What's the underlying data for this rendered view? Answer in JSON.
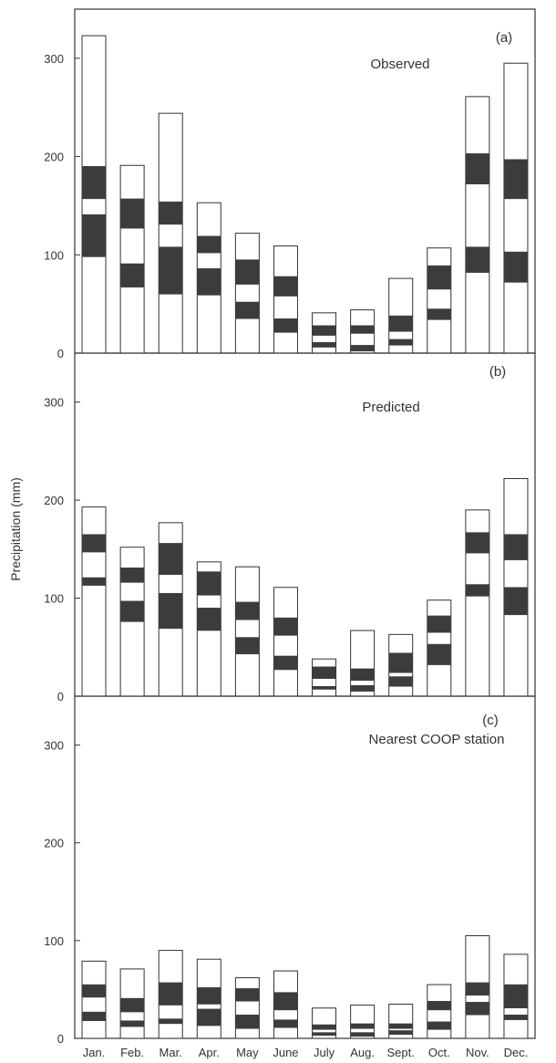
{
  "figure": {
    "ylabel": "Precipitation (mm)",
    "months": [
      "Jan.",
      "Feb.",
      "Mar.",
      "Apr.",
      "May",
      "June",
      "July",
      "Aug.",
      "Sept.",
      "Oct.",
      "Nov.",
      "Dec."
    ],
    "colors": {
      "band": "#3c3c3c",
      "box": "#ffffff",
      "stroke": "#333333"
    }
  },
  "chart_data": [
    {
      "type": "bar",
      "panel_label": "(a)",
      "title": "Observed",
      "ylim": [
        0,
        350
      ],
      "yticks": [
        0,
        100,
        200,
        300
      ],
      "grid": false,
      "categories": [
        "Jan.",
        "Feb.",
        "Mar.",
        "Apr.",
        "May",
        "June",
        "July",
        "Aug.",
        "Sept.",
        "Oct.",
        "Nov.",
        "Dec."
      ],
      "total": [
        323,
        191,
        244,
        153,
        122,
        109,
        41,
        44,
        76,
        107,
        261,
        295
      ],
      "upper_band": [
        [
          157,
          190
        ],
        [
          127,
          157
        ],
        [
          131,
          154
        ],
        [
          102,
          119
        ],
        [
          70,
          95
        ],
        [
          58,
          78
        ],
        [
          18,
          28
        ],
        [
          20,
          28
        ],
        [
          22,
          38
        ],
        [
          65,
          89
        ],
        [
          172,
          203
        ],
        [
          157,
          197
        ]
      ],
      "lower_band": [
        [
          98,
          141
        ],
        [
          67,
          91
        ],
        [
          60,
          108
        ],
        [
          59,
          86
        ],
        [
          35,
          52
        ],
        [
          21,
          35
        ],
        [
          6,
          11
        ],
        [
          2,
          8
        ],
        [
          8,
          14
        ],
        [
          34,
          45
        ],
        [
          82,
          108
        ],
        [
          72,
          103
        ]
      ]
    },
    {
      "type": "bar",
      "panel_label": "(b)",
      "title": "Predicted",
      "ylim": [
        0,
        350
      ],
      "yticks": [
        0,
        100,
        200,
        300
      ],
      "grid": false,
      "categories": [
        "Jan.",
        "Feb.",
        "Mar.",
        "Apr.",
        "May",
        "June",
        "July",
        "Aug.",
        "Sept.",
        "Oct.",
        "Nov.",
        "Dec."
      ],
      "total": [
        193,
        152,
        177,
        137,
        132,
        111,
        38,
        67,
        63,
        98,
        190,
        222
      ],
      "upper_band": [
        [
          147,
          165
        ],
        [
          116,
          131
        ],
        [
          124,
          156
        ],
        [
          103,
          127
        ],
        [
          78,
          96
        ],
        [
          62,
          80
        ],
        [
          18,
          30
        ],
        [
          16,
          28
        ],
        [
          24,
          44
        ],
        [
          65,
          82
        ],
        [
          146,
          167
        ],
        [
          139,
          165
        ]
      ],
      "lower_band": [
        [
          113,
          121
        ],
        [
          76,
          97
        ],
        [
          69,
          105
        ],
        [
          67,
          90
        ],
        [
          43,
          60
        ],
        [
          27,
          41
        ],
        [
          7,
          10
        ],
        [
          5,
          11
        ],
        [
          10,
          20
        ],
        [
          32,
          53
        ],
        [
          102,
          114
        ],
        [
          83,
          111
        ]
      ]
    },
    {
      "type": "bar",
      "panel_label": "(c)",
      "title": "Nearest COOP station",
      "ylim": [
        0,
        350
      ],
      "yticks": [
        0,
        100,
        200,
        300
      ],
      "grid": false,
      "categories": [
        "Jan.",
        "Feb.",
        "Mar.",
        "Apr.",
        "May",
        "June",
        "July",
        "Aug.",
        "Sept.",
        "Oct.",
        "Nov.",
        "Dec."
      ],
      "total": [
        79,
        71,
        90,
        81,
        62,
        69,
        31,
        34,
        35,
        55,
        105,
        86
      ],
      "upper_band": [
        [
          42,
          55
        ],
        [
          27,
          41
        ],
        [
          34,
          57
        ],
        [
          35,
          52
        ],
        [
          38,
          51
        ],
        [
          29,
          47
        ],
        [
          9,
          14
        ],
        [
          10,
          15
        ],
        [
          10,
          15
        ],
        [
          29,
          38
        ],
        [
          44,
          57
        ],
        [
          31,
          55
        ]
      ],
      "lower_band": [
        [
          18,
          27
        ],
        [
          12,
          18
        ],
        [
          15,
          20
        ],
        [
          13,
          30
        ],
        [
          10,
          24
        ],
        [
          11,
          19
        ],
        [
          3,
          6
        ],
        [
          2,
          6
        ],
        [
          4,
          8
        ],
        [
          9,
          17
        ],
        [
          24,
          37
        ],
        [
          19,
          24
        ]
      ]
    }
  ]
}
